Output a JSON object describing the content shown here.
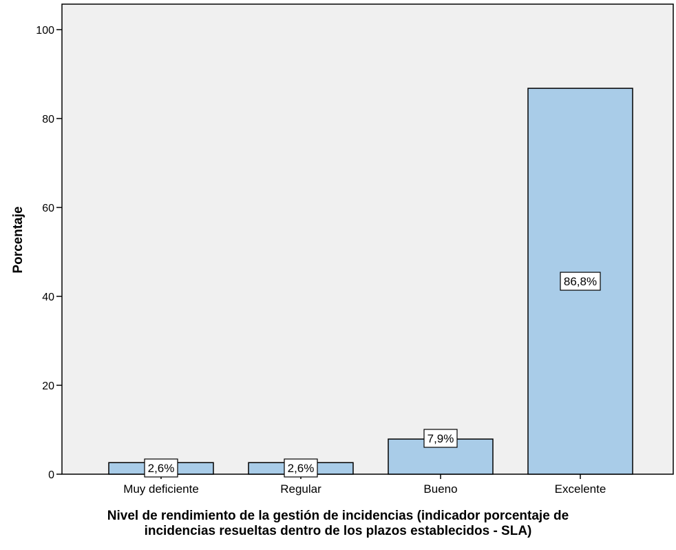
{
  "chart_data": {
    "type": "bar",
    "categories": [
      "Muy deficiente",
      "Regular",
      "Bueno",
      "Excelente"
    ],
    "values": [
      2.6,
      2.6,
      7.9,
      86.8
    ],
    "data_labels": [
      "2,6%",
      "2,6%",
      "7,9%",
      "86,8%"
    ],
    "xlabel_lines": [
      "Nivel de rendimiento de la gestión de incidencias (indicador porcentaje de",
      "incidencias resueltas dentro de los plazos establecidos - SLA)"
    ],
    "ylabel": "Porcentaje",
    "ylim": [
      0,
      100
    ],
    "yticks": [
      0,
      20,
      40,
      60,
      80,
      100
    ],
    "ytick_labels": [
      "0",
      "20",
      "40",
      "60",
      "80",
      "100"
    ],
    "grid": false,
    "colors": {
      "plot_background": "#f0f0f0",
      "bar_fill": "#a9cce8",
      "bar_stroke": "#000000"
    }
  }
}
